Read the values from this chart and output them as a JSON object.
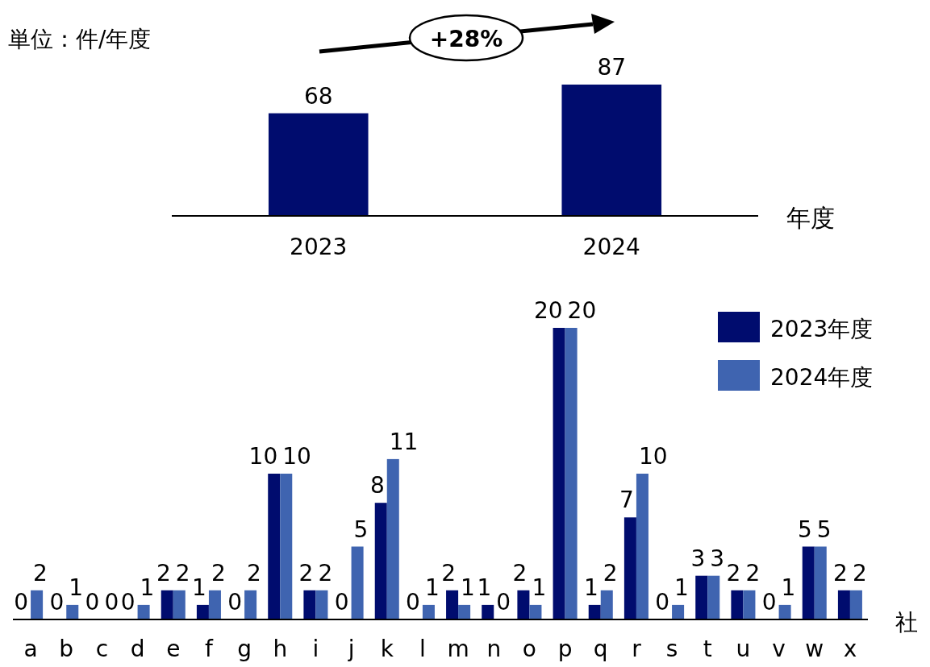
{
  "chart_data": [
    {
      "type": "bar",
      "categories": [
        "2023",
        "2024"
      ],
      "values": [
        68,
        87
      ],
      "color": "#000c6e",
      "data_labels": true,
      "xlabel": "年度",
      "annotations": [
        "単位：件/年度",
        "+28%"
      ]
    },
    {
      "type": "bar",
      "categories": [
        "a",
        "b",
        "c",
        "d",
        "e",
        "f",
        "g",
        "h",
        "i",
        "j",
        "k",
        "l",
        "m",
        "n",
        "o",
        "p",
        "q",
        "r",
        "s",
        "t",
        "u",
        "v",
        "w",
        "x"
      ],
      "series": [
        {
          "name": "2023年度",
          "color": "#000c6e",
          "values": [
            0,
            0,
            0,
            0,
            2,
            1,
            0,
            10,
            2,
            0,
            8,
            0,
            2,
            1,
            2,
            20,
            1,
            7,
            0,
            3,
            2,
            0,
            5,
            2
          ]
        },
        {
          "name": "2024年度",
          "color": "#3f64b0",
          "values": [
            2,
            1,
            0,
            1,
            2,
            2,
            2,
            10,
            2,
            5,
            11,
            1,
            1,
            0,
            1,
            20,
            2,
            10,
            1,
            3,
            2,
            1,
            5,
            2
          ]
        }
      ],
      "data_labels": true,
      "legend": "top right",
      "xlabel": "社"
    }
  ]
}
